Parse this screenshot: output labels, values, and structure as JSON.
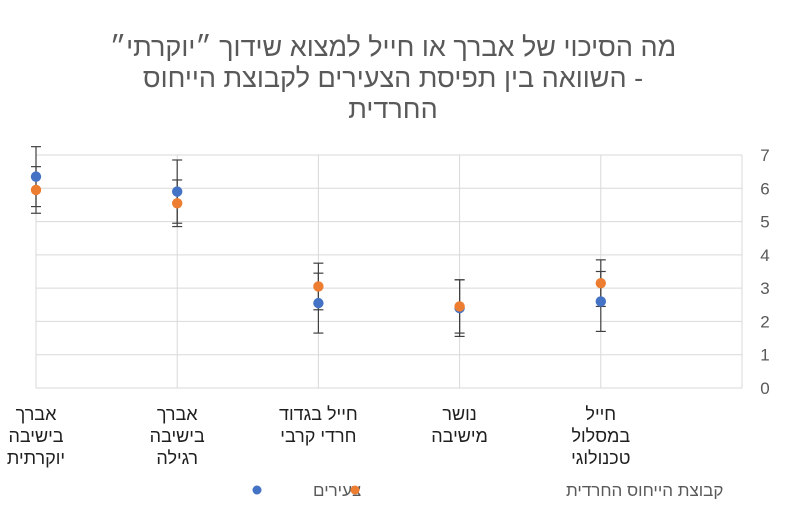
{
  "chart_data": {
    "type": "scatter",
    "title_lines": [
      "מה הסיכוי של אברך או חייל למצוא שידוך ״יוקרתי״",
      "- השוואה בין תפיסת הצעירים לקבוצת הייחוס",
      "החרדית"
    ],
    "categories": [
      [
        "חייל",
        "במסלול",
        "טכנולוגי"
      ],
      [
        "נושר",
        "מישיבה"
      ],
      [
        "חייל בגדוד",
        "חרדי קרבי"
      ],
      [
        "אברך",
        "בישיבה",
        "רגילה"
      ],
      [
        "אברך",
        "בישיבה",
        "יוקרתית"
      ]
    ],
    "y_ticks": [
      "0",
      "1",
      "2",
      "3",
      "4",
      "5",
      "6",
      "7"
    ],
    "ylim": [
      0,
      7
    ],
    "y_axis_side": "right",
    "x_reversed": true,
    "grid": true,
    "legend_position": "bottom",
    "series": [
      {
        "name": "צעירים",
        "color": "#4472c4",
        "values": [
          2.6,
          2.4,
          2.55,
          5.9,
          6.35
        ],
        "error": [
          0.9,
          0.85,
          0.9,
          0.95,
          0.9
        ]
      },
      {
        "name": "קבוצת הייחוס החרדית",
        "color": "#ed7d31",
        "values": [
          3.15,
          2.45,
          3.05,
          5.55,
          5.95
        ],
        "error": [
          0.7,
          0.8,
          0.7,
          0.7,
          0.7
        ]
      }
    ]
  }
}
